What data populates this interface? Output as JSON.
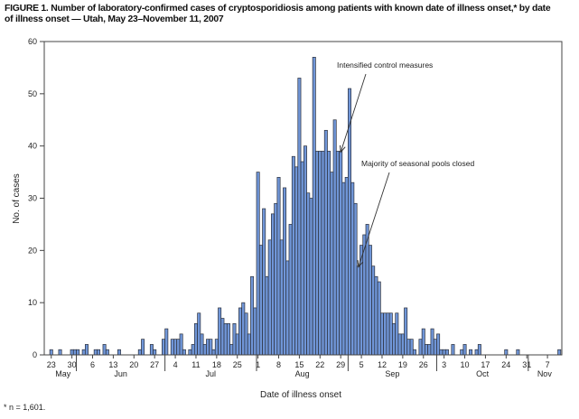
{
  "title_lines": [
    "FIGURE 1. Number of laboratory-confirmed cases of cryptosporidiosis among patients with known date of illness onset,* by date",
    "of illness onset — Utah, May 23–November 11, 2007"
  ],
  "footnote": "* n = 1,601.",
  "colors": {
    "bar_fill": "#7096d8",
    "bar_stroke": "#2b2f3a",
    "axis": "#444444"
  },
  "chart_data": {
    "type": "bar",
    "title": "FIGURE 1. Number of laboratory-confirmed cases of cryptosporidiosis among patients with known date of illness onset,* by date of illness onset — Utah, May 23–November 11, 2007",
    "xlabel": "Date of illness onset",
    "ylabel": "No. of cases",
    "ylim": [
      0,
      60
    ],
    "yticks": [
      0,
      10,
      20,
      30,
      40,
      50,
      60
    ],
    "x_start": "2007-05-23",
    "x_end": "2007-11-11",
    "grid": false,
    "x_tick_labels": [
      {
        "date": "2007-05-23",
        "label": "23"
      },
      {
        "date": "2007-05-30",
        "label": "30"
      },
      {
        "date": "2007-06-06",
        "label": "6"
      },
      {
        "date": "2007-06-13",
        "label": "13"
      },
      {
        "date": "2007-06-20",
        "label": "20"
      },
      {
        "date": "2007-06-27",
        "label": "27"
      },
      {
        "date": "2007-07-04",
        "label": "4"
      },
      {
        "date": "2007-07-11",
        "label": "11"
      },
      {
        "date": "2007-07-18",
        "label": "18"
      },
      {
        "date": "2007-07-25",
        "label": "25"
      },
      {
        "date": "2007-08-01",
        "label": "1"
      },
      {
        "date": "2007-08-08",
        "label": "8"
      },
      {
        "date": "2007-08-15",
        "label": "15"
      },
      {
        "date": "2007-08-22",
        "label": "22"
      },
      {
        "date": "2007-08-29",
        "label": "29"
      },
      {
        "date": "2007-09-05",
        "label": "5"
      },
      {
        "date": "2007-09-12",
        "label": "12"
      },
      {
        "date": "2007-09-19",
        "label": "19"
      },
      {
        "date": "2007-09-26",
        "label": "26"
      },
      {
        "date": "2007-10-03",
        "label": "3"
      },
      {
        "date": "2007-10-10",
        "label": "10"
      },
      {
        "date": "2007-10-17",
        "label": "17"
      },
      {
        "date": "2007-10-24",
        "label": "24"
      },
      {
        "date": "2007-10-31",
        "label": "31"
      },
      {
        "date": "2007-11-07",
        "label": "7"
      }
    ],
    "months": [
      {
        "label": "May",
        "start": "2007-05-23",
        "end": "2007-05-31"
      },
      {
        "label": "Jun",
        "start": "2007-06-01",
        "end": "2007-06-30"
      },
      {
        "label": "Jul",
        "start": "2007-07-01",
        "end": "2007-07-31"
      },
      {
        "label": "Aug",
        "start": "2007-08-01",
        "end": "2007-08-31"
      },
      {
        "label": "Sep",
        "start": "2007-09-01",
        "end": "2007-09-30"
      },
      {
        "label": "Oct",
        "start": "2007-10-01",
        "end": "2007-10-31"
      },
      {
        "label": "Nov",
        "start": "2007-11-01",
        "end": "2007-11-11"
      }
    ],
    "values": [
      1,
      0,
      0,
      1,
      0,
      0,
      0,
      1,
      1,
      1,
      0,
      1,
      2,
      0,
      0,
      1,
      1,
      0,
      2,
      1,
      0,
      0,
      0,
      1,
      0,
      0,
      0,
      0,
      0,
      0,
      1,
      3,
      0,
      0,
      2,
      1,
      0,
      0,
      3,
      5,
      0,
      3,
      3,
      3,
      4,
      1,
      0,
      1,
      2,
      6,
      8,
      4,
      2,
      3,
      3,
      1,
      3,
      9,
      7,
      6,
      6,
      2,
      6,
      4,
      9,
      10,
      8,
      4,
      15,
      9,
      35,
      21,
      28,
      15,
      22,
      27,
      29,
      34,
      22,
      32,
      18,
      25,
      38,
      36,
      53,
      37,
      40,
      31,
      30,
      57,
      39,
      39,
      39,
      43,
      39,
      35,
      45,
      39,
      39,
      33,
      34,
      51,
      33,
      29,
      17,
      21,
      23,
      25,
      21,
      17,
      15,
      14,
      8,
      8,
      8,
      8,
      6,
      8,
      4,
      4,
      9,
      3,
      3,
      1,
      0,
      3,
      5,
      2,
      2,
      5,
      3,
      4,
      1,
      1,
      1,
      0,
      2,
      0,
      0,
      1,
      2,
      0,
      1,
      0,
      1,
      2,
      0,
      0,
      0,
      0,
      0,
      0,
      0,
      0,
      1,
      0,
      0,
      0,
      1,
      0,
      0,
      0,
      0,
      0,
      0,
      0,
      0,
      0,
      0,
      0,
      0,
      0,
      1
    ],
    "annotations": [
      {
        "text": "Intensified control measures",
        "date": "2007-08-29"
      },
      {
        "text": "Majority of seasonal pools closed",
        "date": "2007-09-04"
      }
    ]
  }
}
